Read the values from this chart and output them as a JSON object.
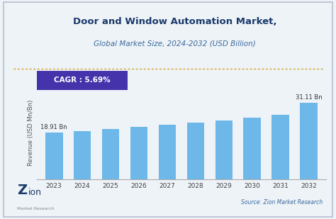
{
  "title_line1": "Door and Window Automation Market,",
  "title_line2": "Global Market Size, 2024-2032 (USD Billion)",
  "years": [
    2023,
    2024,
    2025,
    2026,
    2027,
    2028,
    2029,
    2030,
    2031,
    2032
  ],
  "values": [
    18.91,
    19.6,
    20.35,
    21.15,
    22.0,
    22.9,
    23.85,
    24.85,
    26.05,
    31.11
  ],
  "bar_color": "#6DB8E8",
  "ylabel": "Revenue (USD Mn/Bn)",
  "cagr_text": "CAGR : 5.69%",
  "cagr_box_color": "#4433AA",
  "cagr_text_color": "#ffffff",
  "first_label": "18.91 Bn",
  "last_label": "31.11 Bn",
  "source_text": "Source: Zion Market Research",
  "bg_color": "#EEF3F8",
  "plot_bg_color": "#EEF3F8",
  "ylim": [
    0,
    38
  ],
  "title_color": "#1a3a6b",
  "subtitle_color": "#3a6a9a",
  "dotted_line_color": "#D4A020",
  "axis_color": "#aaaaaa",
  "border_color": "#c0c8d8"
}
